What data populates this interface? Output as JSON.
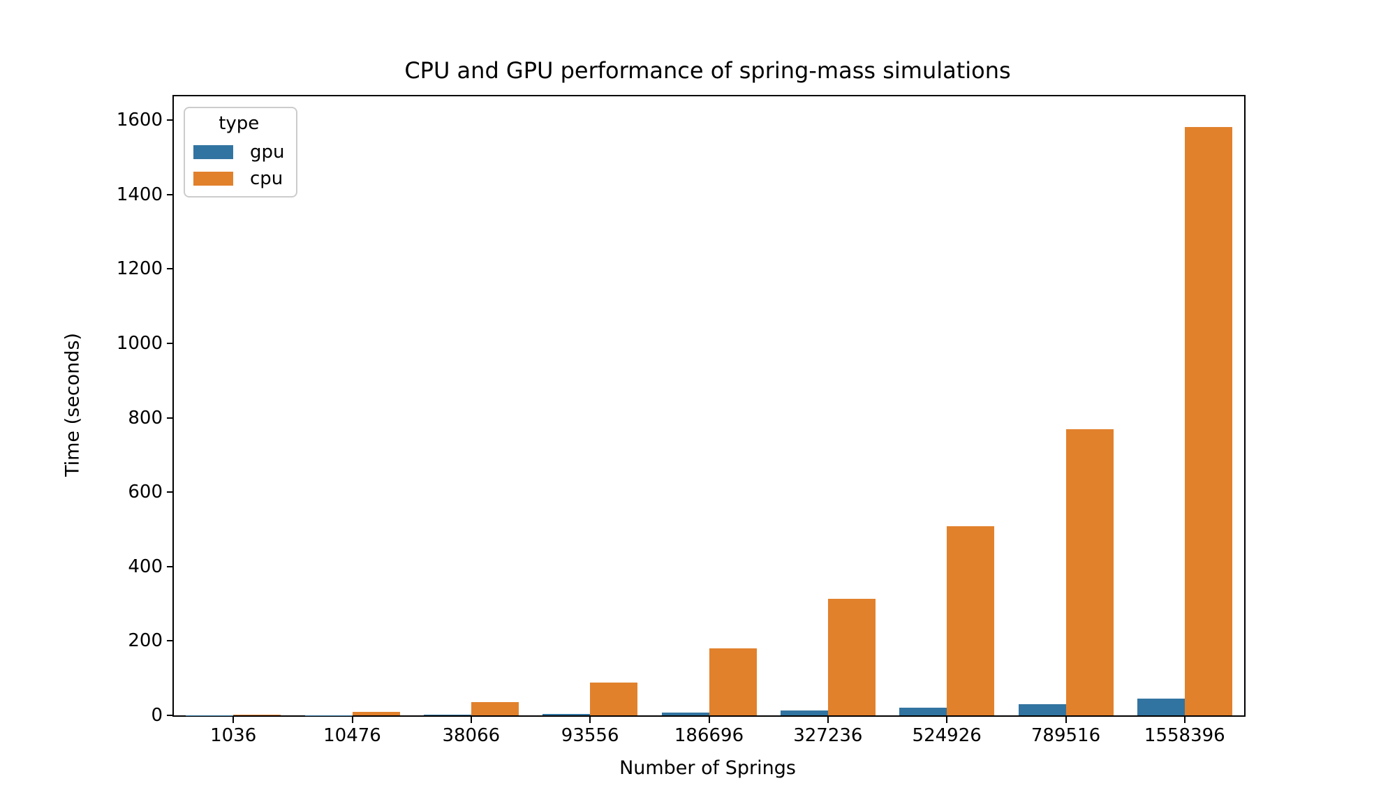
{
  "chart_data": {
    "type": "bar",
    "title": "CPU and GPU performance of spring-mass simulations",
    "xlabel": "Number of Springs",
    "ylabel": "Time (seconds)",
    "categories": [
      "1036",
      "10476",
      "38066",
      "93556",
      "186696",
      "327236",
      "524926",
      "789516",
      "1558396"
    ],
    "series": [
      {
        "name": "gpu",
        "color": "#3274a1",
        "values": [
          0.2,
          0.6,
          2.5,
          4.5,
          7,
          13,
          20,
          30,
          45
        ]
      },
      {
        "name": "cpu",
        "color": "#e1812c",
        "values": [
          1,
          9,
          36,
          88,
          180,
          314,
          509,
          769,
          1582
        ]
      }
    ],
    "ylim": [
      0,
      1664
    ],
    "yticks": [
      0,
      200,
      400,
      600,
      800,
      1000,
      1200,
      1400,
      1600
    ],
    "legend": {
      "title": "type",
      "position": "upper-left"
    },
    "grid": false,
    "spine_color": "#000000",
    "background_color": "#ffffff"
  }
}
